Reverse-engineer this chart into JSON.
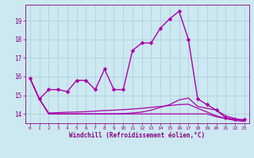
{
  "title": "",
  "xlabel": "Windchill (Refroidissement éolien,°C)",
  "background_color": "#cce8f0",
  "line_color": "#aa00aa",
  "grid_color": "#aaccdd",
  "text_color": "#880088",
  "xlim": [
    -0.5,
    23.5
  ],
  "ylim": [
    13.5,
    19.85
  ],
  "yticks": [
    14,
    15,
    16,
    17,
    18,
    19
  ],
  "xticks": [
    0,
    1,
    2,
    3,
    4,
    5,
    6,
    7,
    8,
    9,
    10,
    11,
    12,
    13,
    14,
    15,
    16,
    17,
    18,
    19,
    20,
    21,
    22,
    23
  ],
  "series": [
    {
      "x": [
        0,
        1,
        2,
        3,
        4,
        5,
        6,
        7,
        8,
        9,
        10,
        11,
        12,
        13,
        14,
        15,
        16,
        17,
        18,
        19,
        20,
        21,
        22,
        23
      ],
      "y": [
        15.9,
        14.8,
        15.3,
        15.3,
        15.2,
        15.8,
        15.8,
        15.3,
        16.4,
        15.3,
        15.3,
        17.4,
        17.8,
        17.8,
        18.6,
        19.1,
        19.5,
        18.0,
        14.8,
        14.5,
        14.2,
        13.8,
        13.7,
        13.7
      ],
      "has_marker": true,
      "markersize": 2.5,
      "linewidth": 1.0
    },
    {
      "x": [
        0,
        1,
        2,
        3,
        4,
        5,
        6,
        7,
        8,
        9,
        10,
        11,
        12,
        13,
        14,
        15,
        16,
        17,
        18,
        19,
        20,
        21,
        22,
        23
      ],
      "y": [
        15.9,
        14.8,
        14.0,
        14.0,
        14.0,
        14.0,
        14.0,
        14.0,
        14.0,
        14.0,
        14.0,
        14.0,
        14.0,
        14.0,
        14.0,
        14.0,
        14.0,
        14.0,
        14.0,
        14.0,
        13.85,
        13.75,
        13.65,
        13.6
      ],
      "has_marker": false,
      "markersize": 0,
      "linewidth": 0.9
    },
    {
      "x": [
        0,
        1,
        2,
        3,
        4,
        5,
        6,
        7,
        8,
        9,
        10,
        11,
        12,
        13,
        14,
        15,
        16,
        17,
        18,
        19,
        20,
        21,
        22,
        23
      ],
      "y": [
        15.9,
        14.8,
        14.05,
        14.07,
        14.09,
        14.1,
        14.12,
        14.15,
        14.18,
        14.2,
        14.23,
        14.26,
        14.3,
        14.35,
        14.4,
        14.45,
        14.5,
        14.52,
        14.3,
        14.1,
        13.9,
        13.75,
        13.7,
        13.65
      ],
      "has_marker": false,
      "markersize": 0,
      "linewidth": 0.9
    },
    {
      "x": [
        0,
        1,
        2,
        3,
        4,
        5,
        6,
        7,
        8,
        9,
        10,
        11,
        12,
        13,
        14,
        15,
        16,
        17,
        18,
        19,
        20,
        21,
        22,
        23
      ],
      "y": [
        15.9,
        14.8,
        14.0,
        14.0,
        14.0,
        14.0,
        14.0,
        14.0,
        14.0,
        14.0,
        14.02,
        14.05,
        14.1,
        14.2,
        14.35,
        14.5,
        14.75,
        14.85,
        14.4,
        14.3,
        14.2,
        13.9,
        13.75,
        13.65
      ],
      "has_marker": false,
      "markersize": 0,
      "linewidth": 0.9
    }
  ]
}
